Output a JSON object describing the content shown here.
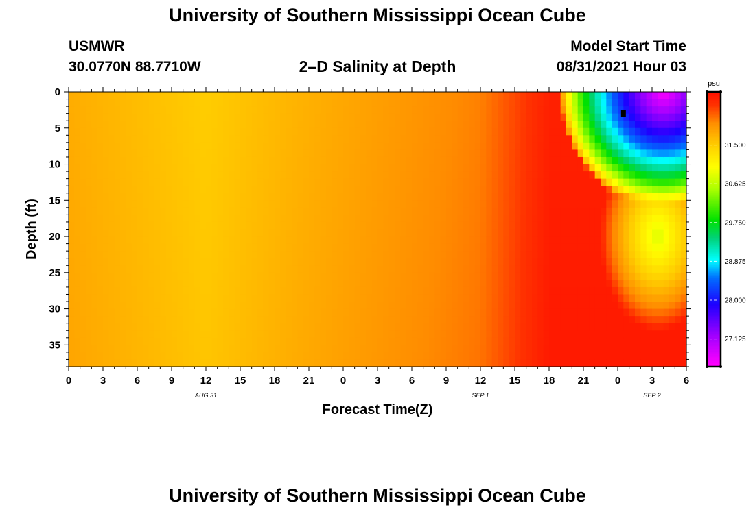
{
  "header": {
    "top_title": "University of Southern Mississippi Ocean Cube",
    "station": "USMWR",
    "coordinates": "30.0770N  88.7710W",
    "plot_title": "2–D Salinity at Depth",
    "model_start_label": "Model Start Time",
    "model_start_value": "08/31/2021 Hour 03"
  },
  "footer": {
    "bottom_title": "University of Southern Mississippi Ocean Cube"
  },
  "chart_data": {
    "type": "heatmap",
    "title": "2–D Salinity at Depth",
    "xlabel": "Forecast Time(Z)",
    "ylabel": "Depth (ft)",
    "x_unit": "hours since 08/31 00Z",
    "xlim": [
      0,
      54
    ],
    "ylim": [
      0,
      38
    ],
    "x_ticks": [
      0,
      3,
      6,
      9,
      12,
      15,
      18,
      21,
      24,
      27,
      30,
      33,
      36,
      39,
      42,
      45,
      48,
      51,
      54
    ],
    "x_tick_labels": [
      "0",
      "3",
      "6",
      "9",
      "12",
      "15",
      "18",
      "21",
      "0",
      "3",
      "6",
      "9",
      "12",
      "15",
      "18",
      "21",
      "0",
      "3",
      "6"
    ],
    "y_ticks": [
      0,
      5,
      10,
      15,
      20,
      25,
      30,
      35
    ],
    "y_tick_labels": [
      "0",
      "5",
      "10",
      "15",
      "20",
      "25",
      "30",
      "35"
    ],
    "date_labels": [
      {
        "x": 12,
        "text": "AUG 31"
      },
      {
        "x": 36,
        "text": "SEP 1"
      },
      {
        "x": 51,
        "text": "SEP 2"
      }
    ],
    "colorbar": {
      "unit": "psu",
      "min": 26.5,
      "max": 32.7,
      "ticks": [
        31.5,
        30.625,
        29.75,
        28.875,
        28.0,
        27.125
      ],
      "tick_labels": [
        "31.500",
        "30.625",
        "29.750",
        "28.875",
        "28.000",
        "27.125"
      ]
    },
    "marker": {
      "time": 48.5,
      "depth": 3
    },
    "field_description": "Salinity ~31.6-32.0 psu (orange/yellow) through most of the period; rises toward ~32.5 (red) by Sep 1 15Z; a fresh-water plume reaches minimum ~26.7 psu near surface around Sep 2 00-03Z, extending to ~15 ft depth."
  }
}
